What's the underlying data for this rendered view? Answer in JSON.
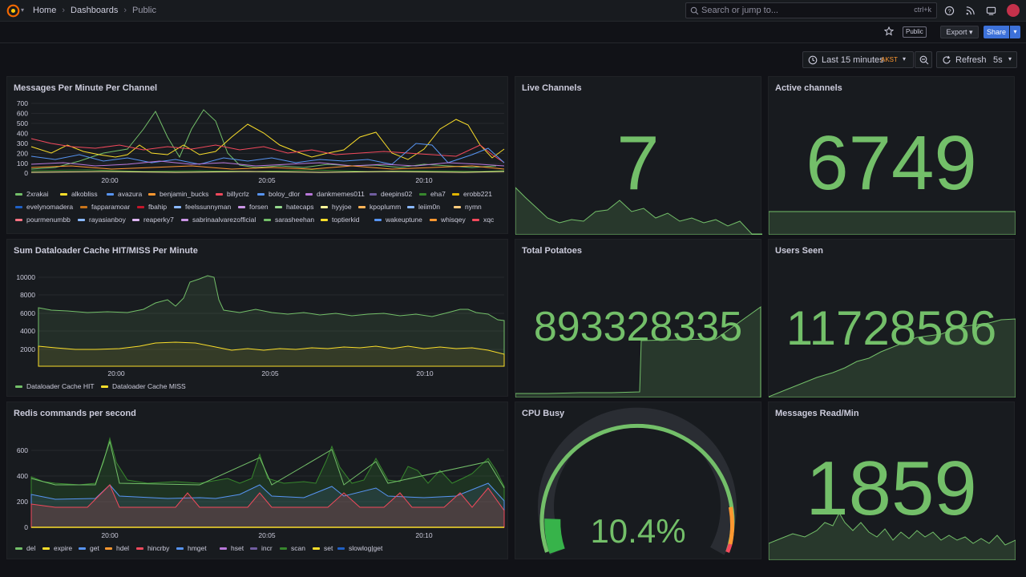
{
  "topbar": {
    "crumbs": [
      "Home",
      "Dashboards",
      "Public"
    ],
    "search_placeholder": "Search or jump to...",
    "search_shortcut": "ctrl+k"
  },
  "toolbar": {
    "public_badge": "Public",
    "export_label": "Export",
    "share_label": "Share",
    "time_range": "Last 15 minutes",
    "timezone": "AKST",
    "refresh_label": "Refresh",
    "refresh_interval": "5s"
  },
  "colors": {
    "green": "#73bf69",
    "yellow": "#fade2a",
    "blue": "#5794f2",
    "red": "#f2495c",
    "orange": "#ff9830",
    "purple": "#b877d9",
    "accent": "#3d71d9"
  },
  "panels": {
    "messages": {
      "title": "Messages Per Minute Per Channel",
      "y_ticks": [
        "700",
        "600",
        "500",
        "400",
        "300",
        "200",
        "100",
        "0"
      ],
      "x_ticks": [
        "20:00",
        "20:05",
        "20:10"
      ],
      "legend": [
        {
          "name": "2xrakai",
          "color": "#73bf69"
        },
        {
          "name": "alkobliss",
          "color": "#fade2a"
        },
        {
          "name": "avazura",
          "color": "#5794f2"
        },
        {
          "name": "benjamin_bucks",
          "color": "#ff9830"
        },
        {
          "name": "billycrlz",
          "color": "#f2495c"
        },
        {
          "name": "boloy_dlor",
          "color": "#5794f2"
        },
        {
          "name": "dankmemes011",
          "color": "#b877d9"
        },
        {
          "name": "deepins02",
          "color": "#705da0"
        },
        {
          "name": "eha7",
          "color": "#37872d"
        },
        {
          "name": "erobb221",
          "color": "#e0b400"
        },
        {
          "name": "evelynomadera",
          "color": "#1f60c4"
        },
        {
          "name": "fapparamoar",
          "color": "#c8741a"
        },
        {
          "name": "fbahip",
          "color": "#c4162a"
        },
        {
          "name": "feelssunnyman",
          "color": "#8ab8ff"
        },
        {
          "name": "forsen",
          "color": "#ca95e5"
        },
        {
          "name": "hatecaps",
          "color": "#96d98d"
        },
        {
          "name": "hyyjoe",
          "color": "#fff899"
        },
        {
          "name": "kpoplumm",
          "color": "#ffb357"
        },
        {
          "name": "leiim0n",
          "color": "#8ab8ff"
        },
        {
          "name": "nymn",
          "color": "#ffcb7d"
        },
        {
          "name": "pourmenumbb",
          "color": "#ff7383"
        },
        {
          "name": "rayasianboy",
          "color": "#8ab8ff"
        },
        {
          "name": "reaperky7",
          "color": "#deb6f2"
        },
        {
          "name": "sabrinaalvarezofficial",
          "color": "#ca95e5"
        },
        {
          "name": "sarasheehan",
          "color": "#73bf69"
        },
        {
          "name": "toptierkid",
          "color": "#fade2a"
        },
        {
          "name": "wakeuptune",
          "color": "#5794f2"
        },
        {
          "name": "whisqey",
          "color": "#ff9830"
        },
        {
          "name": "xqc",
          "color": "#f2495c"
        }
      ]
    },
    "live_channels": {
      "title": "Live Channels",
      "value": "7"
    },
    "active_channels": {
      "title": "Active channels",
      "value": "6749"
    },
    "cache": {
      "title": "Sum Dataloader Cache HIT/MISS Per Minute",
      "y_ticks": [
        "10000",
        "8000",
        "6000",
        "4000",
        "2000"
      ],
      "x_ticks": [
        "20:00",
        "20:05",
        "20:10"
      ],
      "legend": [
        {
          "name": "Dataloader Cache HIT",
          "color": "#73bf69"
        },
        {
          "name": "Dataloader Cache MISS",
          "color": "#fade2a"
        }
      ]
    },
    "potatoes": {
      "title": "Total Potatoes",
      "value": "893328335"
    },
    "users": {
      "title": "Users Seen",
      "value": "11728586"
    },
    "redis": {
      "title": "Redis commands per second",
      "y_ticks": [
        "600",
        "400",
        "200",
        "0"
      ],
      "x_ticks": [
        "20:00",
        "20:05",
        "20:10"
      ],
      "legend": [
        {
          "name": "del",
          "color": "#73bf69"
        },
        {
          "name": "expire",
          "color": "#fade2a"
        },
        {
          "name": "get",
          "color": "#5794f2"
        },
        {
          "name": "hdel",
          "color": "#ff9830"
        },
        {
          "name": "hincrby",
          "color": "#f2495c"
        },
        {
          "name": "hmget",
          "color": "#5794f2"
        },
        {
          "name": "hset",
          "color": "#b877d9"
        },
        {
          "name": "incr",
          "color": "#705da0"
        },
        {
          "name": "scan",
          "color": "#37872d"
        },
        {
          "name": "set",
          "color": "#fade2a"
        },
        {
          "name": "slowlog|get",
          "color": "#1f60c4"
        }
      ]
    },
    "cpu": {
      "title": "CPU Busy",
      "value": "10.4%",
      "percent": 10.4
    },
    "messages_read": {
      "title": "Messages Read/Min",
      "value": "1859"
    }
  }
}
